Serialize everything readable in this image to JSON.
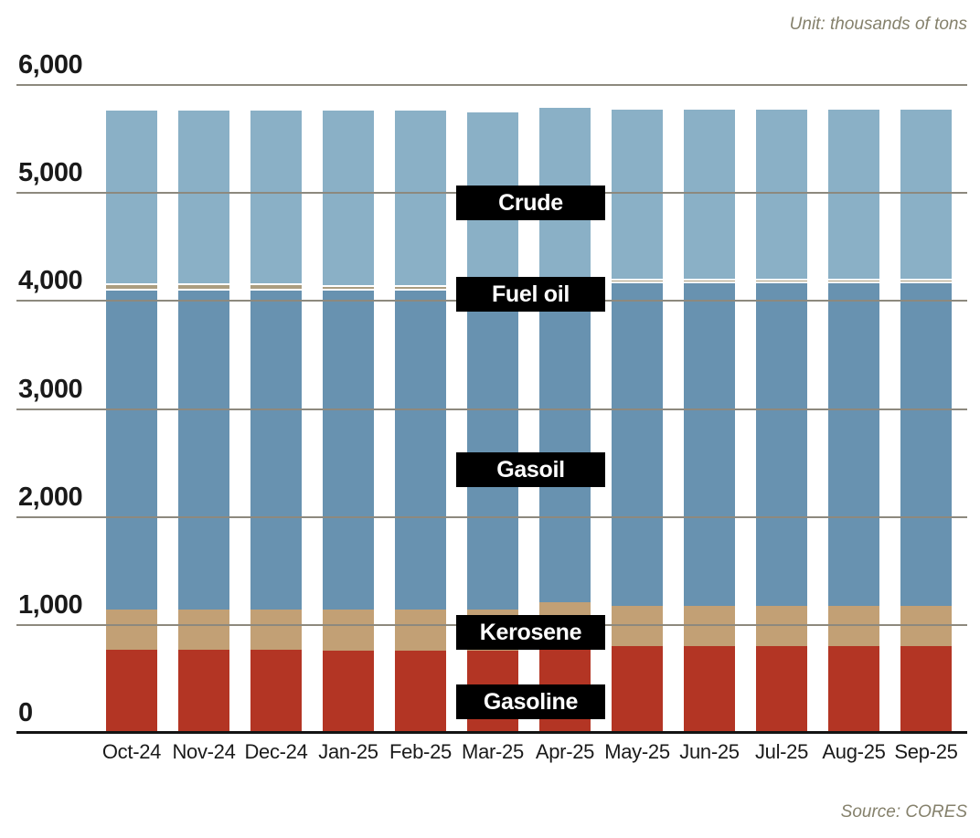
{
  "notes": {
    "unit": "Unit: thousands of tons",
    "source": "Source: CORES"
  },
  "chart_data": {
    "type": "bar",
    "stacked": true,
    "title": "",
    "unit": "thousands of tons",
    "source": "CORES",
    "grid": true,
    "legend_position": "inline-black-label-boxes",
    "categories": [
      "Oct-24",
      "Nov-24",
      "Dec-24",
      "Jan-25",
      "Feb-25",
      "Mar-25",
      "Apr-25",
      "May-25",
      "Jun-25",
      "Jul-25",
      "Aug-25",
      "Sep-25"
    ],
    "series": [
      {
        "name": "Gasoline",
        "color": "#b33524",
        "values": [
          770,
          770,
          770,
          760,
          760,
          760,
          780,
          800,
          800,
          800,
          800,
          800
        ]
      },
      {
        "name": "Kerosene",
        "color": "#c2a075",
        "values": [
          370,
          370,
          370,
          380,
          380,
          380,
          430,
          380,
          380,
          380,
          380,
          380
        ]
      },
      {
        "name": "Gasoil",
        "color": "#6892b0",
        "values": [
          2960,
          2960,
          2960,
          2960,
          2960,
          2960,
          2940,
          2980,
          2980,
          2980,
          2980,
          2980
        ]
      },
      {
        "name": "Fuel oil",
        "color": "#ab9d80",
        "values": [
          60,
          60,
          60,
          50,
          50,
          50,
          50,
          50,
          50,
          50,
          50,
          50
        ]
      },
      {
        "name": "Crude",
        "color": "#8ab0c6",
        "values": [
          1600,
          1600,
          1600,
          1610,
          1610,
          1600,
          1590,
          1560,
          1560,
          1560,
          1560,
          1560
        ]
      }
    ],
    "y_axis": {
      "min": 0,
      "max": 6000,
      "tick_interval": 1000,
      "tick_labels": [
        "0",
        "1,000",
        "2,000",
        "3,000",
        "4,000",
        "5,000",
        "6,000"
      ]
    },
    "segment_labels": [
      {
        "text": "Crude",
        "anchor_value": 4910
      },
      {
        "text": "Fuel oil",
        "anchor_value": 4060
      },
      {
        "text": "Gasoil",
        "anchor_value": 2440
      },
      {
        "text": "Kerosene",
        "anchor_value": 930
      },
      {
        "text": "Gasoline",
        "anchor_value": 290
      }
    ],
    "colors": {
      "gridline": "#8d897e",
      "axis": "#141414",
      "label_box_bg": "#000000",
      "label_box_text": "#ffffff",
      "notes_text": "#85816c"
    }
  }
}
